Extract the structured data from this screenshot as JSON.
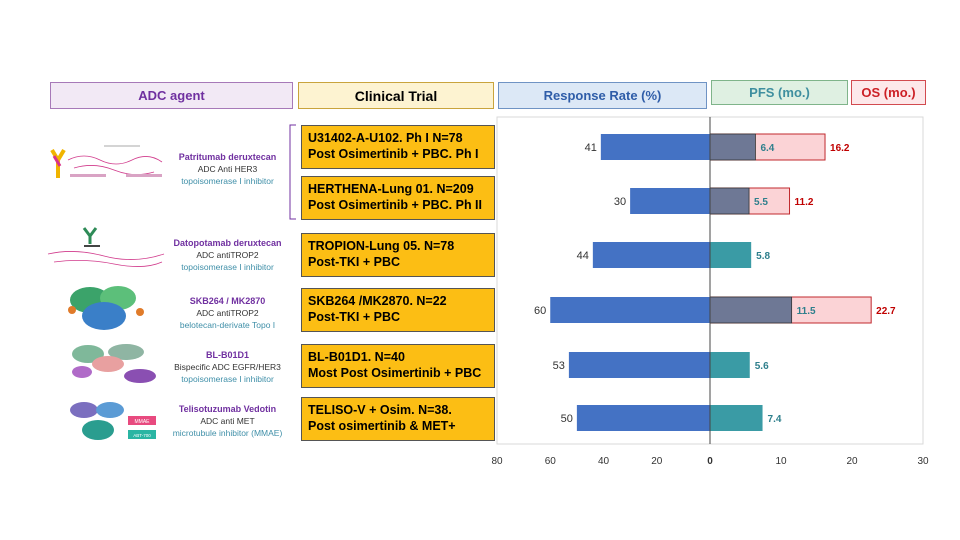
{
  "headers": {
    "adc_agent": "ADC agent",
    "clinical_trial": "Clinical Trial",
    "response_rate": "Response Rate (%)",
    "pfs": "PFS (mo.)",
    "os": "OS (mo.)"
  },
  "agents": [
    {
      "name": "Patritumab deruxtecan",
      "target": "ADC Anti HER3",
      "payload": "topoisomerase I inhibitor"
    },
    {
      "name": "Datopotamab deruxtecan",
      "target": "ADC antiTROP2",
      "payload": "topoisomerase I inhibitor"
    },
    {
      "name": "SKB264 / MK2870",
      "target": "ADC antiTROP2",
      "payload": "belotecan-derivate Topo I"
    },
    {
      "name": "BL-B01D1",
      "target": "Bispecific ADC EGFR/HER3",
      "payload": "topoisomerase I inhibitor"
    },
    {
      "name": "Telisotuzumab Vedotin",
      "target": "ADC anti MET",
      "payload": "microtubule inhibitor (MMAE)"
    }
  ],
  "trials": [
    {
      "line1": "U31402-A-U102. Ph I N=78",
      "line2": "Post Osimertinib + PBC. Ph I"
    },
    {
      "line1": "HERTHENA-Lung 01. N=209",
      "line2": "Post Osimertinib + PBC. Ph II"
    },
    {
      "line1": "TROPION-Lung 05. N=78",
      "line2": "Post-TKI + PBC"
    },
    {
      "line1": "SKB264 /MK2870. N=22",
      "line2": "Post-TKI + PBC"
    },
    {
      "line1": "BL-B01D1. N=40",
      "line2": "Most Post Osimertinib + PBC"
    },
    {
      "line1": "TELISO-V + Osim. N=38.",
      "line2": "Post osimertinib & MET+"
    }
  ],
  "colors": {
    "rr_bar": "#4472c4",
    "pfs_dark": "#6e7895",
    "pfs_teal": "#3a9ba5",
    "os_fill": "#fbd3d6",
    "os_border": "#c0282d",
    "pfs_label": "#2e7f8c",
    "os_label": "#c00000",
    "trial_fill": "#fcbe14"
  },
  "chart_data": {
    "type": "bar",
    "categories": [
      "U31402-A-U102",
      "HERTHENA-Lung 01",
      "TROPION-Lung 05",
      "SKB264 /MK2870",
      "BL-B01D1",
      "TELISO-V + Osim."
    ],
    "response_rate": {
      "values": [
        41,
        30,
        44,
        60,
        53,
        50
      ],
      "axis_ticks": [
        "80",
        "60",
        "40",
        "20",
        "0"
      ],
      "xlim": [
        80,
        0
      ]
    },
    "pfs": {
      "values": [
        6.4,
        5.5,
        5.8,
        11.5,
        5.6,
        7.4
      ],
      "labels": [
        "6.4",
        "5.5",
        "5.8",
        "11.5",
        "5.6",
        "7.4"
      ]
    },
    "os": {
      "values": [
        16.2,
        11.2,
        null,
        22.7,
        null,
        null
      ],
      "labels": [
        "16.2",
        "11.2",
        "",
        "22.7",
        "",
        ""
      ]
    },
    "survival_axis": {
      "axis_ticks": [
        "0",
        "10",
        "20",
        "30"
      ],
      "xlim": [
        0,
        30
      ]
    }
  }
}
